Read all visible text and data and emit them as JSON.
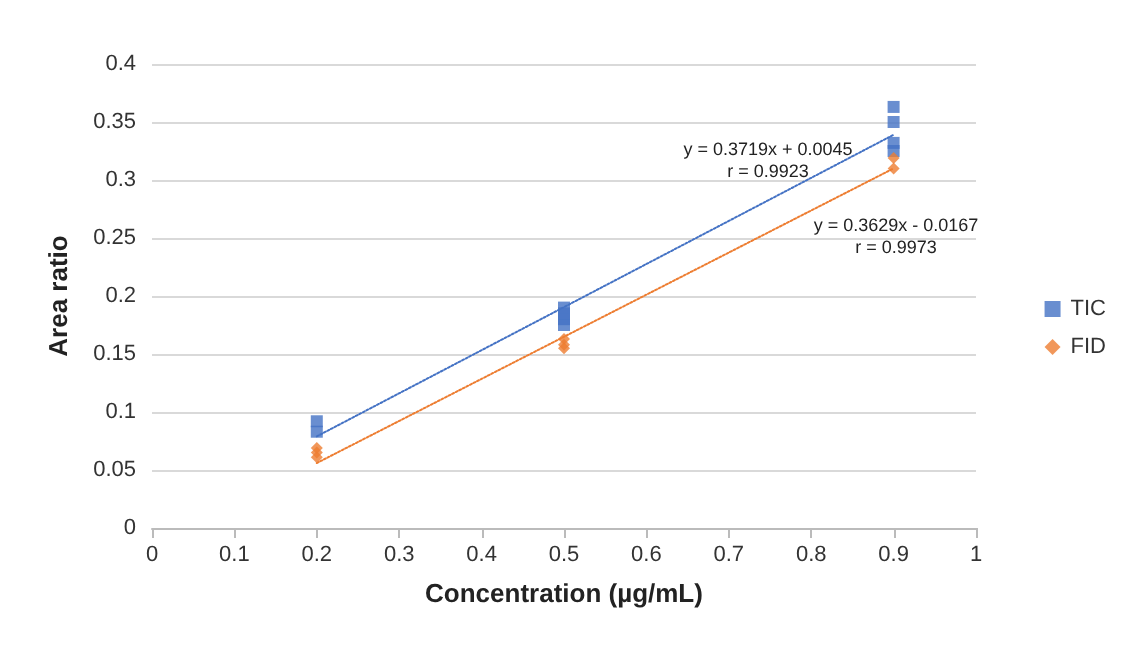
{
  "chart_data": {
    "type": "scatter",
    "xlabel": "Concentration (µg/mL)",
    "ylabel": "Area ratio",
    "series": [
      {
        "name": "TIC",
        "color": "#4472c4",
        "marker": "square",
        "x": [
          0.2,
          0.2,
          0.5,
          0.5,
          0.5,
          0.5,
          0.9,
          0.9,
          0.9,
          0.9
        ],
        "values": [
          0.092,
          0.083,
          0.19,
          0.185,
          0.18,
          0.175,
          0.363,
          0.35,
          0.332,
          0.325
        ]
      },
      {
        "name": "FID",
        "color": "#ed7d31",
        "marker": "diamond",
        "x": [
          0.2,
          0.2,
          0.2,
          0.5,
          0.5,
          0.5,
          0.9,
          0.9
        ],
        "values": [
          0.069,
          0.065,
          0.061,
          0.163,
          0.158,
          0.155,
          0.319,
          0.31
        ]
      },
      {
        "type": "line",
        "color": "#4472c4",
        "marker": "none",
        "line_style": "dotted",
        "x": [
          0.2,
          0.9
        ],
        "values": [
          0.079,
          0.339
        ]
      },
      {
        "type": "line",
        "color": "#ed7d31",
        "marker": "none",
        "line_style": "dotted",
        "x": [
          0.2,
          0.9
        ],
        "values": [
          0.056,
          0.31
        ]
      }
    ],
    "annotations": [
      "y = 0.3719x + 0.0045\nr = 0.9923",
      "y = 0.3629x - 0.0167\nr = 0.9973"
    ],
    "xlim": [
      0,
      1
    ],
    "xticks": [
      0,
      0.1,
      0.2,
      0.3,
      0.4,
      0.5,
      0.6,
      0.7,
      0.8,
      0.9,
      1
    ],
    "ylim": [
      0,
      0.4
    ],
    "yticks": [
      0,
      0.05,
      0.1,
      0.15,
      0.2,
      0.25,
      0.3,
      0.35,
      0.4
    ],
    "grid": "y",
    "legend": "right"
  }
}
